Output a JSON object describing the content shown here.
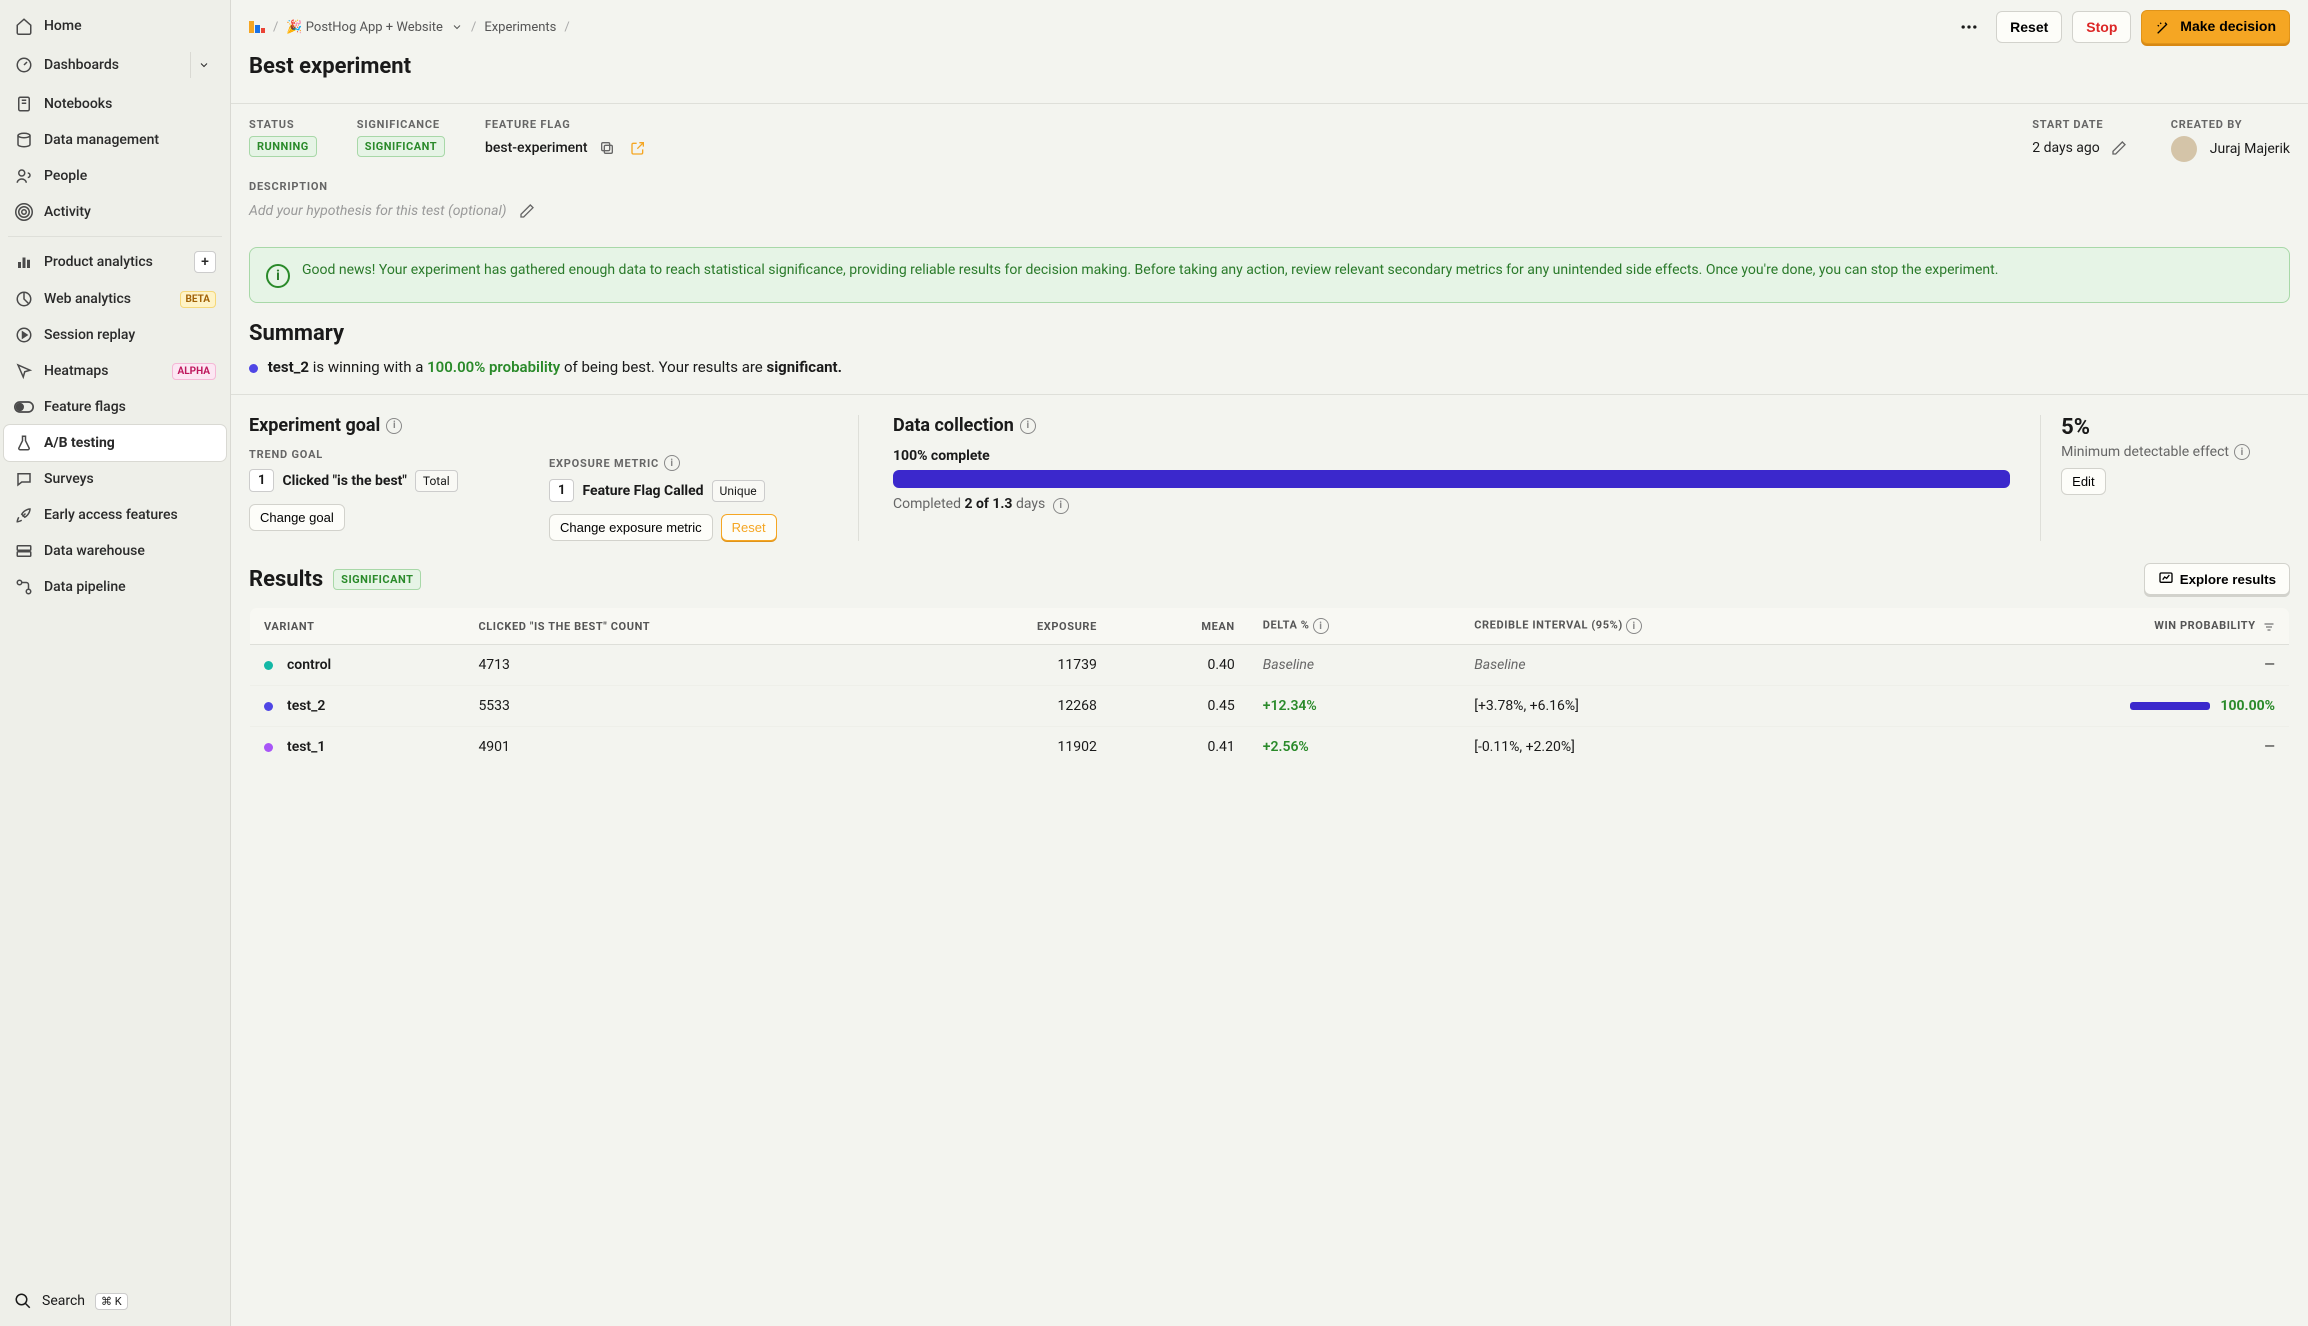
{
  "sidebar": {
    "items": [
      {
        "label": "Home",
        "icon": "home"
      },
      {
        "label": "Dashboards",
        "icon": "dashboards",
        "expandable": true
      }
    ],
    "items2": [
      {
        "label": "Notebooks",
        "icon": "notebook"
      },
      {
        "label": "Data management",
        "icon": "database"
      },
      {
        "label": "People",
        "icon": "people"
      },
      {
        "label": "Activity",
        "icon": "activity"
      }
    ],
    "items3": [
      {
        "label": "Product analytics",
        "icon": "bar",
        "plus": true
      },
      {
        "label": "Web analytics",
        "icon": "pie",
        "badge": "BETA"
      },
      {
        "label": "Session replay",
        "icon": "play"
      },
      {
        "label": "Heatmaps",
        "icon": "cursor",
        "badge": "ALPHA"
      },
      {
        "label": "Feature flags",
        "icon": "toggle"
      },
      {
        "label": "A/B testing",
        "icon": "flask",
        "active": true
      },
      {
        "label": "Surveys",
        "icon": "chat"
      },
      {
        "label": "Early access features",
        "icon": "rocket"
      },
      {
        "label": "Data warehouse",
        "icon": "server"
      },
      {
        "label": "Data pipeline",
        "icon": "pipeline"
      }
    ],
    "search": "Search",
    "shortcut": "⌘ K"
  },
  "breadcrumb": {
    "project": "🎉 PostHog App + Website",
    "section": "Experiments"
  },
  "actions": {
    "reset": "Reset",
    "stop": "Stop",
    "make_decision": "Make decision"
  },
  "title": "Best experiment",
  "meta": {
    "status_label": "STATUS",
    "status": "RUNNING",
    "sig_label": "SIGNIFICANCE",
    "sig": "SIGNIFICANT",
    "ff_label": "FEATURE FLAG",
    "ff": "best-experiment",
    "start_label": "START DATE",
    "start": "2 days ago",
    "created_label": "CREATED BY",
    "created": "Juraj Majerik",
    "desc_label": "DESCRIPTION",
    "desc_placeholder": "Add your hypothesis for this test (optional)"
  },
  "alert": "Good news! Your experiment has gathered enough data to reach statistical significance, providing reliable results for decision making. Before taking any action, review relevant secondary metrics for any unintended side effects. Once you're done, you can stop the experiment.",
  "summary": {
    "title": "Summary",
    "winner": "test_2",
    "text1": " is winning with a ",
    "prob": "100.00% probability",
    "text2": " of being best. Your results are ",
    "sig": "significant."
  },
  "goal": {
    "title": "Experiment goal",
    "trend_label": "TREND GOAL",
    "trend_num": "1",
    "trend_name": "Clicked \"is the best\"",
    "trend_tag": "Total",
    "change_goal": "Change goal",
    "exp_label": "EXPOSURE METRIC",
    "exp_num": "1",
    "exp_name": "Feature Flag Called",
    "exp_tag": "Unique",
    "change_exp": "Change exposure metric",
    "reset_exp": "Reset"
  },
  "data_collection": {
    "title": "Data collection",
    "complete_pct": "100% complete",
    "progress_fill": 100,
    "completed_text1": "Completed ",
    "completed_bold": "2 of 1.3",
    "completed_text2": " days",
    "mde_pct": "5%",
    "mde_label": "Minimum detectable effect",
    "edit": "Edit"
  },
  "results": {
    "title": "Results",
    "sig": "SIGNIFICANT",
    "explore": "Explore results",
    "columns": [
      "VARIANT",
      "CLICKED \"IS THE BEST\" COUNT",
      "EXPOSURE",
      "MEAN",
      "DELTA %",
      "CREDIBLE INTERVAL (95%)",
      "WIN PROBABILITY"
    ],
    "rows": [
      {
        "color": "#14b8a6",
        "variant": "control",
        "count": "4713",
        "exposure": "11739",
        "mean": "0.40",
        "delta": "Baseline",
        "delta_style": "baseline",
        "ci": "Baseline",
        "ci_style": "baseline",
        "win": "—",
        "bar": 0
      },
      {
        "color": "#4f46e5",
        "variant": "test_2",
        "count": "5533",
        "exposure": "12268",
        "mean": "0.45",
        "delta": "+12.34%",
        "delta_style": "pos",
        "ci": "[+3.78%, +6.16%]",
        "win": "100.00%",
        "bar": 80
      },
      {
        "color": "#a855f7",
        "variant": "test_1",
        "count": "4901",
        "exposure": "11902",
        "mean": "0.41",
        "delta": "+2.56%",
        "delta_style": "pos",
        "ci": "[-0.11%, +2.20%]",
        "win": "—",
        "bar": 0
      }
    ]
  }
}
